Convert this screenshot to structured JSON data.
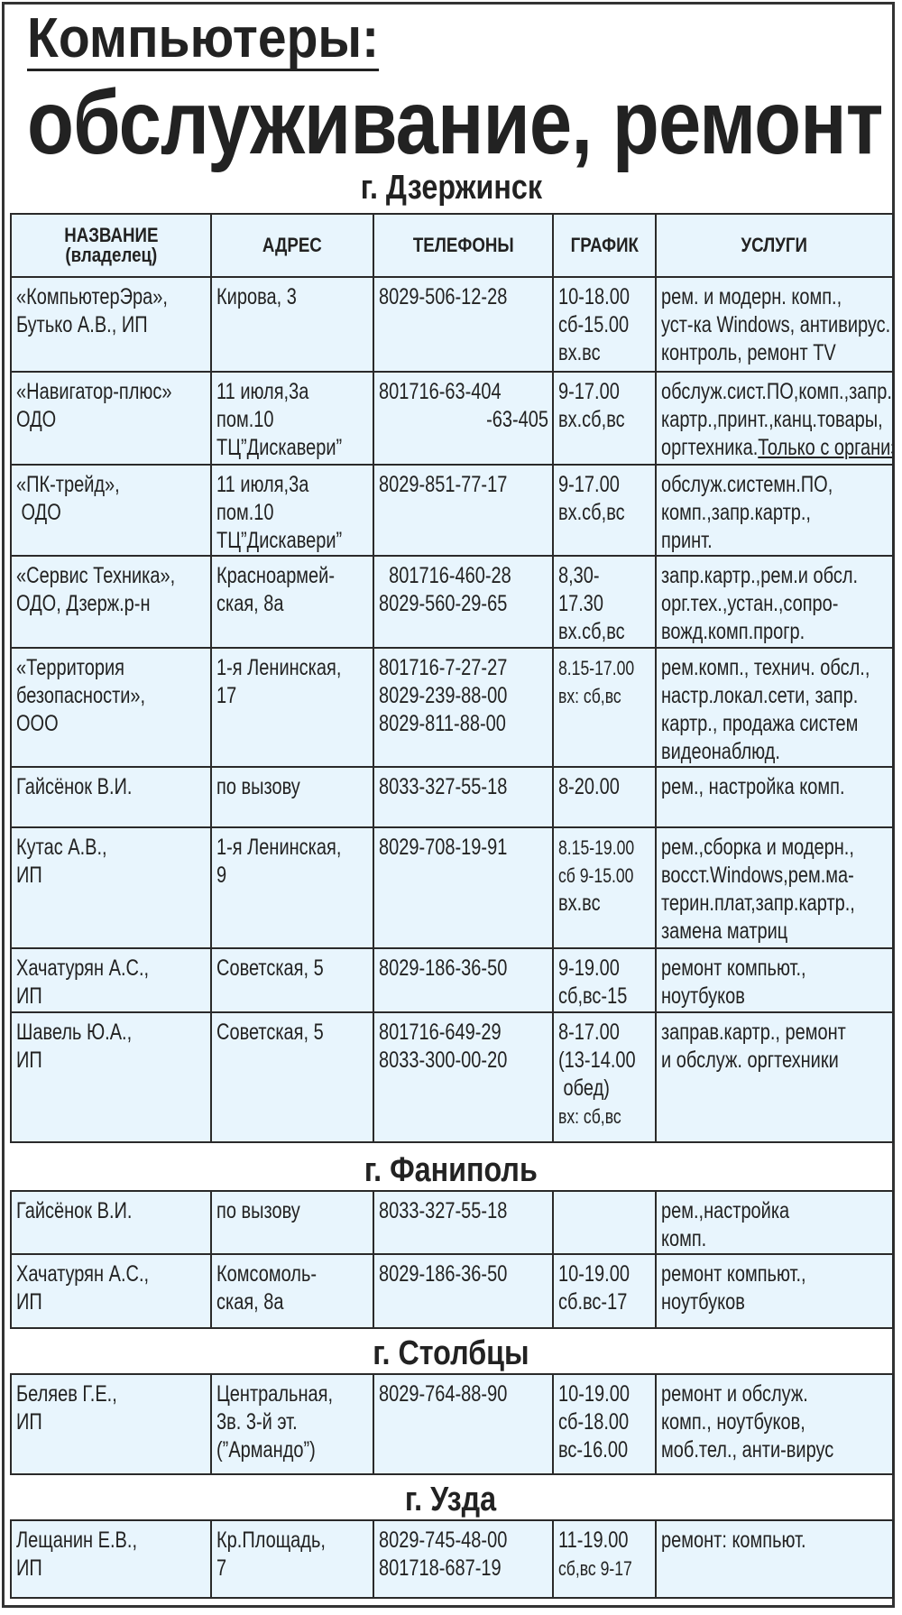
{
  "title_line1": "Компьютеры:",
  "title_line2": "обслуживание, ремонт",
  "headers": {
    "name": "НАЗВАНИЕ\n(владелец)",
    "address": "АДРЕС",
    "phones": "ТЕЛЕФОНЫ",
    "schedule": "ГРАФИК",
    "services": "УСЛУГИ"
  },
  "colors": {
    "cell_bg": "#e8f5fd",
    "border": "#2a2a2a"
  },
  "sections": [
    {
      "city": "г. Дзержинск",
      "rows": [
        {
          "name": [
            "«КомпьютерЭра»,",
            "Бутько А.В., ИП"
          ],
          "address": [
            "Кирова, 3"
          ],
          "phones": [
            "8029-506-12-28"
          ],
          "schedule": [
            "10-18.00",
            "сб-15.00",
            "вх.вс"
          ],
          "services": [
            "рем. и модерн. комп.,",
            "уст-ка Windows, антивирус.",
            "контроль, ремонт TV"
          ]
        },
        {
          "name": [
            "«Навигатор-плюс»",
            "ОДО"
          ],
          "address": [
            "11 июля,3а",
            "пом.10",
            "ТЦ”Дискавери”"
          ],
          "phones": [
            "801716-63-404",
            "-63-405"
          ],
          "schedule": [
            "9-17.00",
            "вх.сб,вс"
          ],
          "services": [
            "обслуж.сист.ПО,комп.,запр.",
            "картр.,принт.,канц.товары,",
            "оргтехника."
          ],
          "services_note": "Только с организ."
        },
        {
          "name": [
            "«ПК-трейд»,",
            " ОДО"
          ],
          "address": [
            "11 июля,3а",
            "пом.10",
            "ТЦ”Дискавери”"
          ],
          "phones": [
            "8029-851-77-17"
          ],
          "schedule": [
            "9-17.00",
            "вх.сб,вс"
          ],
          "services": [
            "обслуж.системн.ПО,",
            "комп.,запр.картр.,",
            "принт."
          ]
        },
        {
          "name": [
            "«Сервис Техника»,",
            "ОДО, Дзерж.р-н"
          ],
          "address": [
            "Красноармей-",
            "ская, 8а"
          ],
          "phones": [
            "  801716-460-28",
            "8029-560-29-65"
          ],
          "schedule": [
            "8,30-",
            "17.30",
            "вх.сб,вс"
          ],
          "services": [
            "запр.картр.,рем.и обсл.",
            "орг.тех.,устан.,сопро-",
            "вожд.комп.прогр."
          ]
        },
        {
          "name": [
            "«Территория",
            "безопасности»,",
            "ООО"
          ],
          "address": [
            "1-я Ленинская,",
            "17"
          ],
          "phones": [
            "801716-7-27-27",
            "8029-239-88-00",
            "8029-811-88-00"
          ],
          "schedule": [
            "8.15-17.00",
            "вх: сб,вс"
          ],
          "services": [
            "рем.комп., технич. обсл.,",
            "настр.локал.сети, запр.",
            "картр., продажа систем",
            "видеонаблюд."
          ]
        },
        {
          "name": [
            "Гайсёнок В.И."
          ],
          "address": [
            "по вызову"
          ],
          "phones": [
            "8033-327-55-18"
          ],
          "schedule": [
            "8-20.00"
          ],
          "services": [
            "рем., настройка комп."
          ]
        },
        {
          "name": [
            "Кутас А.В.,",
            "ИП"
          ],
          "address": [
            "1-я Ленинская,",
            "9"
          ],
          "phones": [
            "8029-708-19-91"
          ],
          "schedule": [
            "8.15-19.00",
            "сб 9-15.00",
            "вх.вс"
          ],
          "services": [
            "рем.,сборка и модерн.,",
            "восст.Windows,рем.ма-",
            "терин.плат,запр.картр.,",
            "замена матриц"
          ]
        },
        {
          "name": [
            "Хачатурян А.С.,",
            "ИП"
          ],
          "address": [
            "Советская, 5"
          ],
          "phones": [
            "8029-186-36-50"
          ],
          "schedule": [
            "9-19.00",
            "сб,вс-15"
          ],
          "services": [
            "ремонт компьют.,",
            "ноутбуков"
          ]
        },
        {
          "name": [
            "Шавель Ю.А.,",
            "ИП"
          ],
          "address": [
            "Советская, 5"
          ],
          "phones": [
            "801716-649-29",
            "8033-300-00-20"
          ],
          "schedule": [
            "8-17.00",
            "(13-14.00",
            " обед)",
            "вх: сб,вс"
          ],
          "services": [
            "заправ.картр., ремонт",
            "и обслуж. оргтехники"
          ]
        }
      ]
    },
    {
      "city": "г. Фаниполь",
      "rows": [
        {
          "name": [
            "Гайсёнок В.И."
          ],
          "address": [
            "по вызову"
          ],
          "phones": [
            "8033-327-55-18"
          ],
          "schedule": [],
          "services": [
            "рем.,настройка",
            "комп."
          ]
        },
        {
          "name": [
            "Хачатурян А.С.,",
            "ИП"
          ],
          "address": [
            "Комсомоль-",
            "ская, 8а"
          ],
          "phones": [
            "8029-186-36-50"
          ],
          "schedule": [
            "10-19.00",
            "сб.вс-17"
          ],
          "services": [
            "ремонт компьют.,",
            "ноутбуков"
          ]
        }
      ]
    },
    {
      "city": "г. Столбцы",
      "rows": [
        {
          "name": [
            "Беляев Г.Е.,",
            "ИП"
          ],
          "address": [
            "Центральная,",
            "3в. 3-й эт.",
            "(”Армандо”)"
          ],
          "phones": [
            "8029-764-88-90"
          ],
          "schedule": [
            "10-19.00",
            "сб-18.00",
            "вс-16.00"
          ],
          "services": [
            "ремонт и обслуж.",
            "комп., ноутбуков,",
            "моб.тел., анти-вирус"
          ]
        }
      ]
    },
    {
      "city": "г. Узда",
      "rows": [
        {
          "name": [
            "Лещанин Е.В.,",
            "ИП"
          ],
          "address": [
            "Кр.Площадь,",
            "7"
          ],
          "phones": [
            "8029-745-48-00",
            "801718-687-19"
          ],
          "schedule": [
            "11-19.00",
            "сб,вс 9-17"
          ],
          "services": [
            "ремонт: компьют."
          ]
        }
      ]
    }
  ]
}
